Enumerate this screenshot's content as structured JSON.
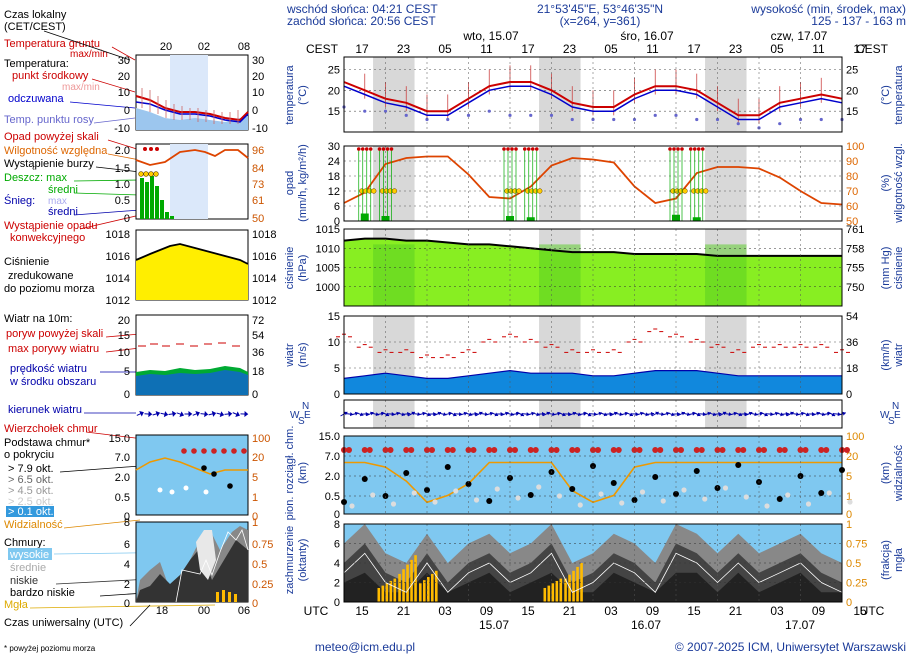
{
  "header": {
    "sunrise": "wschód słońca: 04:21 CEST",
    "sunset": "zachód słońca: 20:56 CEST",
    "coords": "21°53'45\"E, 53°46'35\"N",
    "grid": "(x=264,  y=361)",
    "elevation_label": "wysokość (min, środek, max)",
    "elevation_values": "125 - 137 - 163 m"
  },
  "legend": {
    "local_time": "Czas lokalny",
    "local_time_zone": "(CET/CEST)",
    "ground_temp": "Temperatura gruntu",
    "ground_temp_sub": "max/min",
    "temperature": "Temperatura:",
    "midpoint": "punkt środkowy",
    "max_min": "max/min",
    "perceived": "odczuwana",
    "dew_point": "Temp. punktu rosy",
    "rain_above": "Opad powyżej skali",
    "humidity": "Wilgotność względna",
    "storm": "Wystąpienie burzy",
    "rain_max": "Deszcz: max",
    "rain_mid": "średni",
    "snow_max": "max",
    "snow_label": "Śnieg:",
    "snow_mid": "średni",
    "convective": "Wystąpienie opadu",
    "convective2": "konwekcyjnego",
    "pressure1": "Ciśnienie",
    "pressure2": "zredukowane",
    "pressure3": "do poziomu morza",
    "wind_10m": "Wiatr na 10m:",
    "gust_above": "poryw powyżej skali",
    "max_gust": "max porywy wiatru",
    "wind_speed1": "prędkość wiatru",
    "wind_speed2": "w środku obszaru",
    "wind_dir": "kierunek wiatru",
    "cloud_top": "Wierzchołek chmur",
    "cloud_base1": "Podstawa chmur*",
    "cloud_base2": "o pokryciu",
    "okt_79": "> 7.9 okt.",
    "okt_65": "> 6.5 okt.",
    "okt_45": "> 4.5 okt.",
    "okt_25": "> 2.5 okt.",
    "okt_01": "> 0.1 okt.",
    "visibility": "Widzialność",
    "clouds": "Chmury:",
    "high": "wysokie",
    "mid": "średnie",
    "low": "niskie",
    "very_low": "bardzo niskie",
    "fog": "Mgła",
    "utc_time": "Czas uniwersalny (UTC)",
    "footnote": "* powyżej poziomu morza"
  },
  "mini_axis": {
    "top_ticks": [
      "20",
      "02",
      "08"
    ],
    "bottom_ticks": [
      "18",
      "00",
      "06"
    ],
    "temp_left": [
      "30",
      "20",
      "10",
      "0",
      "-10"
    ],
    "temp_right": [
      "30",
      "20",
      "10",
      "0",
      "-10"
    ],
    "rain_left": [
      "2.0",
      "1.5",
      "1.0",
      "0.5",
      "0"
    ],
    "rain_right": [
      "96",
      "84",
      "73",
      "61",
      "50"
    ],
    "press_left": [
      "1018",
      "1016",
      "1014",
      "1012"
    ],
    "press_right": [
      "1018",
      "1016",
      "1014",
      "1012"
    ],
    "wind_left": [
      "20",
      "15",
      "10",
      "5",
      "0"
    ],
    "wind_right": [
      "72",
      "54",
      "36",
      "18",
      "0"
    ],
    "cb_left": [
      "15.0",
      "7.0",
      "2.0",
      "0.5",
      "0"
    ],
    "cb_right": [
      "100",
      "20",
      "5",
      "1",
      "0"
    ],
    "cl_left": [
      "8",
      "6",
      "4",
      "2",
      "0"
    ],
    "cl_right": [
      "1",
      "0.75",
      "0.5",
      "0.25",
      "0"
    ]
  },
  "main_axis": {
    "cest": "CEST",
    "utc": "UTC",
    "day_labels": [
      "wto, 15.07",
      "śro, 16.07",
      "czw, 17.07"
    ],
    "top_hours": [
      "17",
      "23",
      "05",
      "11",
      "17",
      "23",
      "05",
      "11",
      "17",
      "23",
      "05",
      "11",
      "17"
    ],
    "bottom_hours": [
      "15",
      "21",
      "03",
      "09",
      "15",
      "21",
      "03",
      "09",
      "15",
      "21",
      "03",
      "09",
      "15"
    ],
    "bottom_dates": [
      "15.07",
      "16.07",
      "17.07"
    ]
  },
  "panel_labels": {
    "temp_left": [
      "temperatura",
      "(°C)"
    ],
    "temp_right": [
      "temperatura",
      "(°C)"
    ],
    "rain_left": [
      "opad",
      "(mm/h, kg/m²/h)"
    ],
    "rain_right": [
      "wilgotność wzgl.",
      "(%)"
    ],
    "press_left": [
      "ciśnienie",
      "(hPa)"
    ],
    "press_right": [
      "ciśnienie",
      "(mm Hg)"
    ],
    "wind_left": [
      "wiatr",
      "(m/s)"
    ],
    "wind_right": [
      "wiatr",
      "(km/h)"
    ],
    "cb_left": [
      "pion. rozciągł. chm.",
      "(km)"
    ],
    "cb_right": [
      "widzialność",
      "(km)"
    ],
    "cl_left": [
      "zachmurzenie",
      "(oktanty)"
    ],
    "cl_right": [
      "mgła",
      "(frakcja)"
    ]
  },
  "compass": {
    "n": "N",
    "w": "W",
    "s": "S",
    "e": "E"
  },
  "footer": {
    "email": "meteo@icm.edu.pl",
    "copyright": "© 2007-2025 ICM, Uniwersytet Warszawski"
  },
  "colors": {
    "red": "#cc0000",
    "blue": "#0000cc",
    "orange": "#dd6600",
    "green": "#00aa00",
    "sky": "#7fc8f0",
    "night": "#d8d8d8"
  },
  "chart_data": [
    {
      "type": "line",
      "title": "temperatura",
      "ylabel": "temperatura (°C)",
      "x_start_utc": "2025-07-14 15:00",
      "step_hours": 3,
      "ylim": [
        10,
        28
      ],
      "y_ticks": [
        15,
        20,
        25
      ],
      "series": [
        {
          "name": "punkt środkowy",
          "values": [
            22,
            20,
            18,
            17,
            15,
            15,
            18,
            21,
            22,
            22,
            20,
            17,
            16,
            16,
            19,
            21,
            21,
            20,
            17,
            14,
            14,
            17,
            18,
            19,
            18
          ]
        },
        {
          "name": "odczuwana",
          "values": [
            21,
            19,
            17,
            16,
            14,
            14,
            17,
            20,
            21,
            21,
            19,
            16,
            15,
            15,
            18,
            20,
            20,
            19,
            16,
            13,
            13,
            16,
            17,
            18,
            17
          ]
        },
        {
          "name": "Temp. punktu rosy",
          "values": [
            16,
            15,
            15,
            14,
            13,
            13,
            14,
            15,
            14,
            14,
            14,
            13,
            13,
            13,
            13,
            14,
            14,
            13,
            13,
            12,
            11,
            12,
            13,
            13,
            13
          ]
        }
      ]
    },
    {
      "type": "line",
      "title": "opad / wilgotność",
      "ylabel": "opad (mm/h)",
      "ylim": [
        0,
        30
      ],
      "y_ticks": [
        0,
        6,
        12,
        18,
        24,
        30
      ],
      "y2_ticks": [
        50,
        60,
        70,
        80,
        90,
        100
      ],
      "series": [
        {
          "name": "Wilgotność względna",
          "values": [
            62,
            69,
            88,
            92,
            93,
            93,
            81,
            66,
            65,
            73,
            87,
            92,
            91,
            89,
            73,
            62,
            65,
            82,
            86,
            86,
            85,
            79,
            70,
            62,
            61
          ]
        },
        {
          "name": "Deszcz max",
          "values": [
            0,
            0,
            0,
            0,
            0,
            0,
            0,
            0,
            0,
            0,
            0,
            0,
            0,
            0,
            0,
            0,
            0,
            0,
            0,
            0,
            0,
            0,
            0,
            0,
            0
          ]
        },
        {
          "name": "Deszcz średni",
          "values": [
            0,
            1.2,
            0.8,
            0,
            0,
            0,
            0,
            0,
            0.8,
            0.6,
            0,
            0,
            0,
            0,
            0,
            0,
            1.0,
            0.6,
            0,
            0,
            0,
            0,
            0,
            0,
            0
          ]
        }
      ]
    },
    {
      "type": "area",
      "title": "ciśnienie",
      "ylabel": "ciśnienie (hPa)",
      "ylim": [
        995,
        1015
      ],
      "y_ticks": [
        1000,
        1005,
        1010,
        1015
      ],
      "y2_ticks": [
        750,
        755,
        758,
        761
      ],
      "series": [
        {
          "name": "Ciśnienie",
          "values": [
            1012,
            1012.5,
            1012.5,
            1012,
            1012,
            1011.5,
            1011,
            1011,
            1010.5,
            1010,
            1009.5,
            1009,
            1009,
            1009,
            1008.5,
            1008.5,
            1008.5,
            1008.5,
            1008,
            1008,
            1008,
            1008,
            1008,
            1008,
            1008
          ]
        }
      ]
    },
    {
      "type": "area",
      "title": "wiatr",
      "ylabel": "wiatr (m/s)",
      "ylim": [
        0,
        15
      ],
      "y_ticks": [
        0,
        5,
        10,
        15
      ],
      "y2_ticks": [
        0,
        18,
        36,
        54
      ],
      "series": [
        {
          "name": "prędkość wiatru",
          "values": [
            3,
            3.5,
            4,
            3.5,
            3,
            3,
            3.5,
            4,
            4.5,
            4,
            4,
            4,
            3.5,
            3.5,
            4,
            4.5,
            4.5,
            4.5,
            4,
            3.5,
            3.5,
            3.5,
            3.5,
            3.5,
            3.5
          ]
        },
        {
          "name": "max porywy wiatru",
          "values": [
            11,
            9,
            8,
            8,
            7,
            7,
            8,
            10,
            11,
            10,
            9,
            8,
            8,
            8,
            10,
            12,
            11,
            10,
            9,
            8,
            9,
            9,
            9,
            9,
            8
          ]
        }
      ]
    },
    {
      "type": "scatter",
      "title": "chmury / widzialność",
      "ylabel": "pion. rozciągł. chm. (km)",
      "y_ticks": [
        "0",
        "0.5",
        "2.0",
        "7.0",
        "15.0"
      ],
      "y2_ticks": [
        "0",
        "1",
        "5",
        "20",
        "100"
      ],
      "series": [
        {
          "name": "Widzialność",
          "values": [
            20,
            20,
            15,
            6,
            1,
            2,
            5,
            20,
            20,
            20,
            20,
            3,
            1,
            2,
            15,
            20,
            20,
            20,
            20,
            20,
            20,
            20,
            20,
            20,
            20
          ]
        }
      ]
    },
    {
      "type": "area",
      "title": "zachmurzenie",
      "ylabel": "zachmurzenie (oktanty)",
      "ylim": [
        0,
        8
      ],
      "y_ticks": [
        0,
        2,
        4,
        6,
        8
      ],
      "y2_ticks": [
        0,
        0.25,
        0.5,
        0.75,
        1
      ],
      "series": [
        {
          "name": "niskie",
          "values": [
            4,
            6,
            3,
            2,
            5,
            2,
            4,
            5,
            3,
            4,
            6,
            2,
            3,
            5,
            4,
            2,
            6,
            5,
            3,
            5,
            3,
            4,
            5,
            3,
            2
          ]
        },
        {
          "name": "bardzo niskie",
          "values": [
            2,
            3,
            1,
            1,
            3,
            1,
            2,
            3,
            1,
            2,
            3,
            1,
            1,
            3,
            2,
            1,
            3,
            3,
            1,
            3,
            1,
            2,
            3,
            1,
            1
          ]
        },
        {
          "name": "Mgła",
          "values": [
            0,
            0,
            0.3,
            0.6,
            0.4,
            0,
            0,
            0,
            0,
            0,
            0.3,
            0.5,
            0,
            0,
            0,
            0,
            0,
            0,
            0,
            0,
            0,
            0,
            0,
            0,
            0
          ]
        }
      ]
    }
  ]
}
